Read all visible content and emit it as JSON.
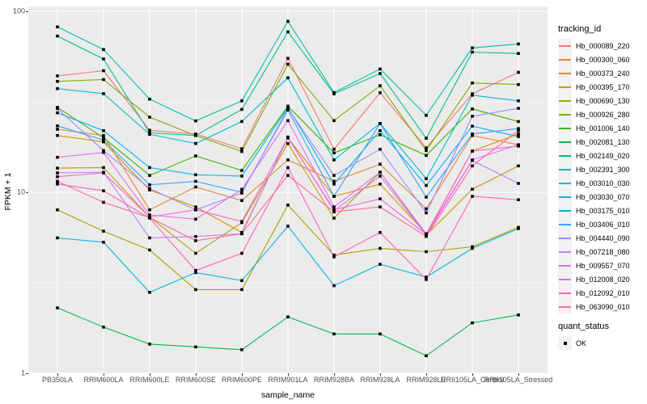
{
  "figure": {
    "y_axis": {
      "title": "FPKM + 1",
      "ticks": [
        {
          "label": "1",
          "value": 1
        },
        {
          "label": "10",
          "value": 10
        },
        {
          "label": "100",
          "value": 100
        }
      ]
    },
    "x_axis": {
      "title": "sample_name"
    },
    "legend": {
      "tracking_title": "tracking_id",
      "quant_title": "quant_status",
      "quant_items": [
        {
          "label": "OK",
          "marker": "black-square"
        }
      ]
    },
    "colors": {
      "panel_background": "#EBEBEB",
      "gridline": "#FFFFFF",
      "axis_text": "#4D4D4D",
      "tick_mark": "#333333",
      "point": "#000000",
      "legend_key_background": "#F2F2F2"
    }
  },
  "chart_data": {
    "type": "line",
    "title": "",
    "xlabel": "sample_name",
    "ylabel": "FPKM + 1",
    "y_scale": "log10",
    "ylim": [
      1,
      100
    ],
    "grid": "white-on-grey",
    "legend_position": "right",
    "point_marker": "black-square",
    "x_categories": [
      "PB350LA",
      "RRIM600LA",
      "RRIM600LE",
      "RRIM600SE",
      "RRIM600PE",
      "RRIM901LA",
      "RRIM928BA",
      "RRIM928LA",
      "RRIM928LE",
      "RRII105LA_Control",
      "RRII105LA_Stressed"
    ],
    "series": [
      {
        "name": "Hb_000089_220",
        "color": "#F8766D",
        "quant_status": "OK",
        "values": [
          44,
          47,
          22,
          21,
          17.4,
          55,
          17.3,
          35.5,
          17.6,
          35,
          46
        ]
      },
      {
        "name": "Hb_000300_060",
        "color": "#EA8331",
        "quant_status": "OK",
        "values": [
          22.3,
          20.6,
          8,
          10.7,
          9,
          15.1,
          11.5,
          14.3,
          8.1,
          20.6,
          18.3
        ]
      },
      {
        "name": "Hb_000373_240",
        "color": "#D89000",
        "quant_status": "OK",
        "values": [
          20.6,
          19,
          10.3,
          8.3,
          6,
          20,
          9.5,
          11.1,
          5.9,
          16.9,
          21
        ]
      },
      {
        "name": "Hb_000395_170",
        "color": "#C09B00",
        "quant_status": "OK",
        "values": [
          13.6,
          13.7,
          7.3,
          4.6,
          6.8,
          18.6,
          7.2,
          12.9,
          5.8,
          10.4,
          14
        ]
      },
      {
        "name": "Hb_000690_130",
        "color": "#A3A500",
        "quant_status": "OK",
        "values": [
          8,
          6.1,
          4.8,
          2.9,
          2.9,
          8.5,
          4.5,
          4.9,
          4.7,
          5,
          6.4
        ]
      },
      {
        "name": "Hb_000926_280",
        "color": "#7CAE00",
        "quant_status": "OK",
        "values": [
          41,
          42,
          26,
          20.6,
          16.8,
          51,
          24.9,
          38.8,
          17,
          40.2,
          39.4
        ]
      },
      {
        "name": "Hb_001006_140",
        "color": "#39B600",
        "quant_status": "OK",
        "values": [
          29.5,
          20,
          12.4,
          15.9,
          13.2,
          29.9,
          16.5,
          20.8,
          16,
          28.9,
          24.6
        ]
      },
      {
        "name": "Hb_002081_130",
        "color": "#00BB4E",
        "quant_status": "OK",
        "values": [
          2.3,
          1.8,
          1.45,
          1.4,
          1.35,
          2.05,
          1.65,
          1.65,
          1.25,
          1.9,
          2.1
        ]
      },
      {
        "name": "Hb_002149_020",
        "color": "#00C087",
        "quant_status": "OK",
        "values": [
          73,
          54.5,
          21.3,
          20.6,
          28.7,
          77,
          35,
          45.3,
          19.9,
          59.5,
          58.5
        ]
      },
      {
        "name": "Hb_002391_300",
        "color": "#00C1AB",
        "quant_status": "OK",
        "values": [
          82,
          61.5,
          32.7,
          24.8,
          32,
          88,
          35.6,
          48,
          26.6,
          62.8,
          66
        ]
      },
      {
        "name": "Hb_003010_030",
        "color": "#00BFC4",
        "quant_status": "OK",
        "values": [
          37.4,
          35.1,
          20.9,
          18.6,
          24.6,
          42.9,
          15.1,
          24,
          11.9,
          34.4,
          32
        ]
      },
      {
        "name": "Hb_003030_070",
        "color": "#00BAE0",
        "quant_status": "OK",
        "values": [
          5.6,
          5.3,
          2.8,
          3.6,
          3.25,
          6.5,
          3.05,
          4,
          3.4,
          4.9,
          6.3
        ]
      },
      {
        "name": "Hb_003175_010",
        "color": "#00B0F6",
        "quant_status": "OK",
        "values": [
          27.5,
          21.9,
          13.7,
          12.5,
          12.3,
          29.5,
          11.1,
          21.9,
          10.9,
          23.2,
          20.3
        ]
      },
      {
        "name": "Hb_003406_010",
        "color": "#35A2FF",
        "quant_status": "OK",
        "values": [
          23.3,
          19.4,
          11,
          11.5,
          10,
          28.5,
          9.5,
          24,
          9.4,
          21,
          22.5
        ]
      },
      {
        "name": "Hb_004440_090",
        "color": "#9590FF",
        "quant_status": "OK",
        "values": [
          29,
          17,
          10.5,
          8,
          9.9,
          29.1,
          12.4,
          17.3,
          7.7,
          26.3,
          29.1
        ]
      },
      {
        "name": "Hb_007218_080",
        "color": "#C77CFF",
        "quant_status": "OK",
        "values": [
          12.8,
          12.9,
          5.6,
          5.7,
          5.9,
          20.2,
          7.9,
          12.3,
          5.8,
          15,
          11.2
        ]
      },
      {
        "name": "Hb_009557_070",
        "color": "#E76BF3",
        "quant_status": "OK",
        "values": [
          15.6,
          16.6,
          7.5,
          7.1,
          10.4,
          24.9,
          8.3,
          12.9,
          5.9,
          15.1,
          18.3
        ]
      },
      {
        "name": "Hb_012008_020",
        "color": "#FA62DB",
        "quant_status": "OK",
        "values": [
          12.2,
          12.8,
          7.3,
          8,
          6.9,
          20,
          8,
          9.2,
          5.85,
          16.9,
          18
        ]
      },
      {
        "name": "Hb_012092_010",
        "color": "#FF62BC",
        "quant_status": "OK",
        "values": [
          11.1,
          10.2,
          7.2,
          3.7,
          4.6,
          13.7,
          4.4,
          6,
          3.3,
          9.5,
          9.1
        ]
      },
      {
        "name": "Hb_063090_010",
        "color": "#FF6A98",
        "quant_status": "OK",
        "values": [
          11.5,
          8.8,
          7.25,
          5.4,
          5.9,
          12.4,
          7.8,
          8.3,
          5.7,
          14,
          21.9
        ]
      }
    ]
  }
}
